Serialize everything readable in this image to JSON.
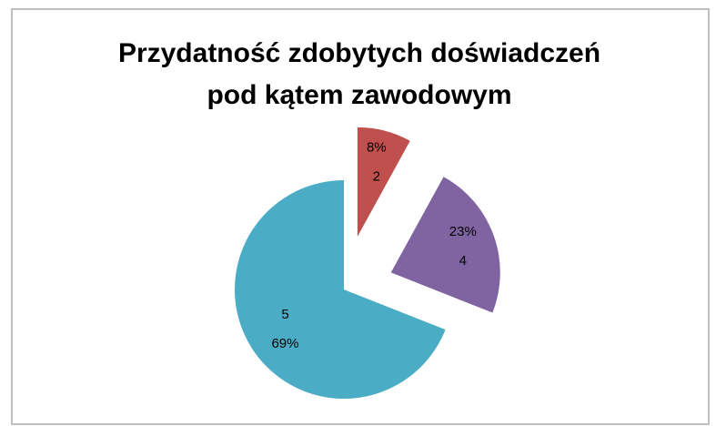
{
  "chart_data": {
    "type": "pie",
    "title": "Przydatność zdobytych doświadczeń",
    "subtitle": "pod kątem zawodowym",
    "categories": [
      "2",
      "4",
      "5"
    ],
    "values": [
      8,
      23,
      69
    ],
    "value_labels": [
      "8%",
      "23%",
      "69%"
    ],
    "colors": [
      "#c0504d",
      "#8064a2",
      "#4bacc6"
    ]
  }
}
